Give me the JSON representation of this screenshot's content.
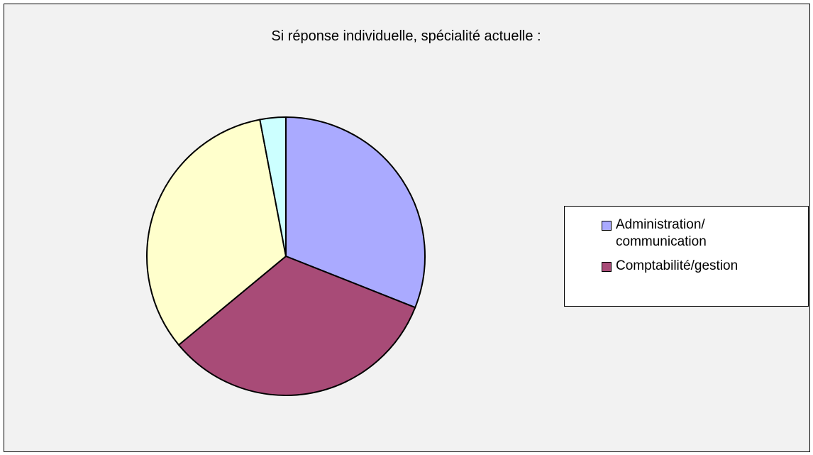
{
  "chart_data": {
    "type": "pie",
    "title": "Si réponse individuelle, spécialité actuelle :",
    "categories": [
      "Administration/ communication",
      "Comptabilité/gestion",
      null,
      null
    ],
    "values": [
      31,
      33,
      33,
      3
    ],
    "colors": [
      "#aaaaff",
      "#a84b77",
      "#ffffcc",
      "#ccffff"
    ],
    "legend": "right"
  }
}
